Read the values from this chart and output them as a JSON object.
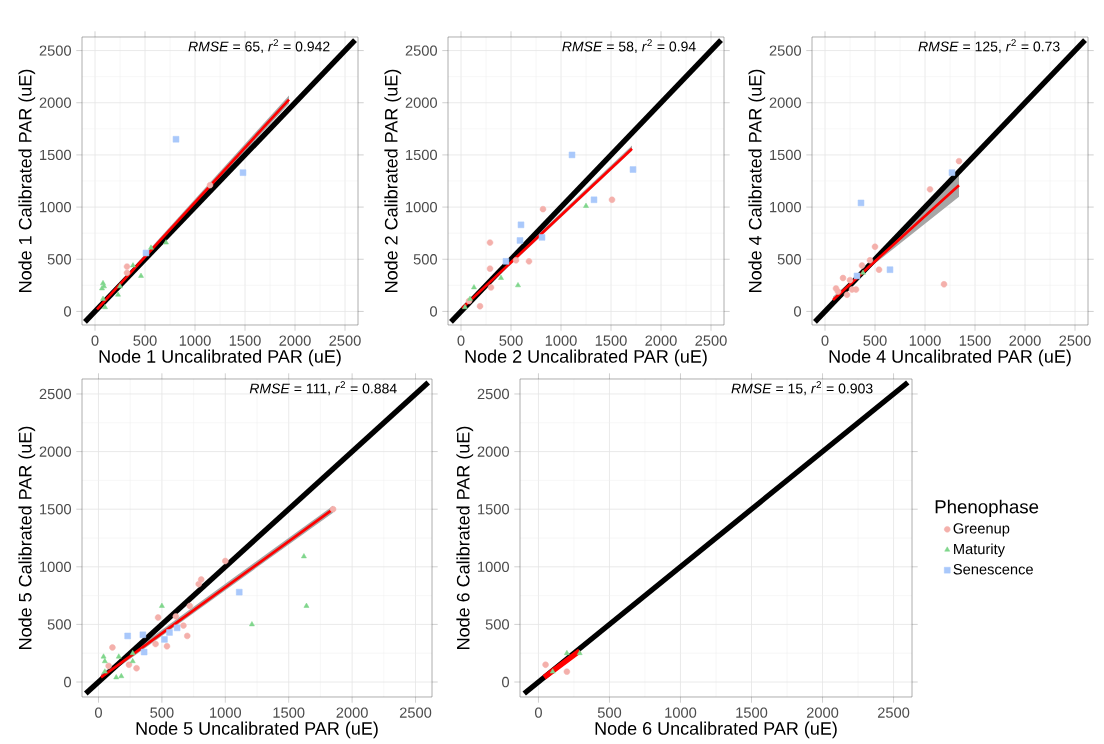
{
  "chart_data": [
    {
      "type": "scatter",
      "xlabel": "Node 1 Uncalibrated PAR (uE)",
      "ylabel": "Node 1 Calibrated PAR (uE)",
      "annotations": [
        "*RMSE* = 65, *r*$^{2}$ = 0.942"
      ],
      "xlim": [
        -130,
        2630
      ],
      "ylim": [
        -130,
        2630
      ],
      "xticks": [
        0,
        500,
        1000,
        1500,
        2000,
        2500
      ],
      "yticks": [
        0,
        500,
        1000,
        1500,
        2000,
        2500
      ],
      "grid": true,
      "legend": false,
      "series": [
        {
          "type": "scatter",
          "marker": "circle",
          "color": "#f4b0ab",
          "x": [
            320,
            320,
            1150
          ],
          "values": [
            430,
            370,
            1210
          ]
        },
        {
          "type": "scatter",
          "marker": "triangle",
          "color": "#7fd68b",
          "x": [
            80,
            90,
            70,
            80,
            100,
            230,
            460,
            380,
            560,
            710,
            250
          ],
          "values": [
            270,
            240,
            220,
            120,
            40,
            160,
            340,
            440,
            610,
            660,
            240
          ]
        },
        {
          "type": "scatter",
          "marker": "square",
          "color": "#a9c8fb",
          "x": [
            810,
            1480,
            510
          ],
          "values": [
            1650,
            1330,
            560
          ]
        },
        {
          "type": "line",
          "color": "#000000",
          "x": [
            -100,
            2600
          ],
          "values": [
            -100,
            2600
          ]
        },
        {
          "type": "line",
          "color": "#ff0000",
          "x": [
            20,
            1940
          ],
          "values": [
            20,
            2030
          ],
          "lower": [
            10,
            1990
          ],
          "upper": [
            40,
            2070
          ]
        }
      ]
    },
    {
      "type": "scatter",
      "xlabel": "Node 2 Uncalibrated PAR (uE)",
      "ylabel": "Node 2 Calibrated PAR (uE)",
      "annotations": [
        "*RMSE* = 58, *r*$^{2}$ = 0.94"
      ],
      "xlim": [
        -130,
        2630
      ],
      "ylim": [
        -130,
        2630
      ],
      "xticks": [
        0,
        500,
        1000,
        1500,
        2000,
        2500
      ],
      "yticks": [
        0,
        500,
        1000,
        1500,
        2000,
        2500
      ],
      "grid": true,
      "legend": false,
      "series": [
        {
          "type": "scatter",
          "marker": "circle",
          "color": "#f4b0ab",
          "x": [
            820,
            1510,
            290,
            550,
            680,
            290,
            300,
            190,
            80
          ],
          "values": [
            980,
            1070,
            660,
            490,
            480,
            410,
            230,
            50,
            100
          ]
        },
        {
          "type": "scatter",
          "marker": "triangle",
          "color": "#7fd68b",
          "x": [
            1250,
            400,
            570,
            130,
            90,
            40
          ],
          "values": [
            1010,
            320,
            250,
            230,
            120,
            40
          ]
        },
        {
          "type": "scatter",
          "marker": "square",
          "color": "#a9c8fb",
          "x": [
            1110,
            1720,
            1330,
            600,
            590,
            810,
            450
          ],
          "values": [
            1500,
            1360,
            1070,
            830,
            680,
            710,
            480
          ]
        },
        {
          "type": "line",
          "color": "#000000",
          "x": [
            -100,
            2600
          ],
          "values": [
            -100,
            2600
          ]
        },
        {
          "type": "line",
          "color": "#ff0000",
          "x": [
            10,
            1710
          ],
          "values": [
            30,
            1560
          ],
          "lower": [
            10,
            1540
          ],
          "upper": [
            50,
            1590
          ]
        }
      ]
    },
    {
      "type": "scatter",
      "xlabel": "Node 4 Uncalibrated PAR (uE)",
      "ylabel": "Node 4 Calibrated PAR (uE)",
      "annotations": [
        "*RMSE* = 125, *r*$^{2}$ = 0.73"
      ],
      "xlim": [
        -130,
        2630
      ],
      "ylim": [
        -130,
        2630
      ],
      "xticks": [
        0,
        500,
        1000,
        1500,
        2000,
        2500
      ],
      "yticks": [
        0,
        500,
        1000,
        1500,
        2000,
        2500
      ],
      "grid": true,
      "legend": false,
      "series": [
        {
          "type": "scatter",
          "marker": "circle",
          "color": "#f4b0ab",
          "x": [
            1340,
            1050,
            500,
            540,
            1190,
            370,
            450,
            180,
            110,
            270,
            310,
            220,
            130,
            250
          ],
          "values": [
            1440,
            1170,
            620,
            400,
            260,
            440,
            490,
            320,
            220,
            210,
            210,
            160,
            190,
            300
          ]
        },
        {
          "type": "scatter",
          "marker": "triangle",
          "color": "#7fd68b",
          "x": [
            380
          ],
          "values": [
            370
          ]
        },
        {
          "type": "scatter",
          "marker": "square",
          "color": "#a9c8fb",
          "x": [
            360,
            650,
            1270,
            320
          ],
          "values": [
            1040,
            400,
            1330,
            340
          ]
        },
        {
          "type": "line",
          "color": "#000000",
          "x": [
            -100,
            2600
          ],
          "values": [
            -100,
            2600
          ]
        },
        {
          "type": "line",
          "color": "#ff0000",
          "x": [
            80,
            500,
            1340
          ],
          "values": [
            110,
            480,
            1210
          ],
          "lower": [
            80,
            460,
            1100
          ],
          "upper": [
            140,
            500,
            1320
          ]
        }
      ]
    },
    {
      "type": "scatter",
      "xlabel": "Node 5 Uncalibrated PAR (uE)",
      "ylabel": "Node 5 Calibrated PAR (uE)",
      "annotations": [
        "*RMSE* = 111, *r*$^{2}$ = 0.884"
      ],
      "xlim": [
        -130,
        2630
      ],
      "ylim": [
        -130,
        2630
      ],
      "xticks": [
        0,
        500,
        1000,
        1500,
        2000,
        2500
      ],
      "yticks": [
        0,
        500,
        1000,
        1500,
        2000,
        2500
      ],
      "grid": true,
      "legend": false,
      "series": [
        {
          "type": "scatter",
          "marker": "circle",
          "color": "#f4b0ab",
          "x": [
            1850,
            1000,
            810,
            790,
            720,
            670,
            700,
            470,
            610,
            540,
            450,
            110,
            300,
            240,
            80
          ],
          "values": [
            1500,
            1050,
            890,
            850,
            660,
            490,
            400,
            560,
            570,
            310,
            330,
            300,
            120,
            150,
            140
          ]
        },
        {
          "type": "scatter",
          "marker": "triangle",
          "color": "#7fd68b",
          "x": [
            1620,
            1640,
            1210,
            500,
            40,
            50,
            160,
            270,
            140,
            180,
            50,
            270
          ],
          "values": [
            1090,
            660,
            500,
            660,
            220,
            180,
            220,
            180,
            40,
            50,
            90,
            250
          ]
        },
        {
          "type": "scatter",
          "marker": "square",
          "color": "#a9c8fb",
          "x": [
            1110,
            230,
            350,
            620,
            560,
            360,
            520
          ],
          "values": [
            780,
            400,
            410,
            470,
            430,
            260,
            370
          ]
        },
        {
          "type": "line",
          "color": "#000000",
          "x": [
            -100,
            2600
          ],
          "values": [
            -100,
            2600
          ]
        },
        {
          "type": "line",
          "color": "#ff0000",
          "x": [
            20,
            1850
          ],
          "values": [
            40,
            1500
          ],
          "lower": [
            20,
            1470
          ],
          "upper": [
            70,
            1530
          ]
        }
      ]
    },
    {
      "type": "scatter",
      "xlabel": "Node 6 Uncalibrated PAR (uE)",
      "ylabel": "Node 6 Calibrated PAR (uE)",
      "annotations": [
        "*RMSE* = 15, *r*$^{2}$ = 0.903"
      ],
      "xlim": [
        -130,
        2630
      ],
      "ylim": [
        -130,
        2630
      ],
      "xticks": [
        0,
        500,
        1000,
        1500,
        2000,
        2500
      ],
      "yticks": [
        0,
        500,
        1000,
        1500,
        2000,
        2500
      ],
      "grid": true,
      "legend": "right",
      "legend_title": "Phenophase",
      "series": [
        {
          "type": "scatter",
          "name": "Greenup",
          "marker": "circle",
          "color": "#f4b0ab",
          "x": [
            50,
            200
          ],
          "values": [
            150,
            90
          ]
        },
        {
          "type": "scatter",
          "name": "Maturity",
          "marker": "triangle",
          "color": "#7fd68b",
          "x": [
            200,
            290,
            100
          ],
          "values": [
            250,
            250,
            90
          ]
        },
        {
          "type": "scatter",
          "name": "Senescence",
          "marker": "square",
          "color": "#a9c8fb"
        },
        {
          "type": "line",
          "color": "#000000",
          "x": [
            -100,
            2600
          ],
          "values": [
            -100,
            2600
          ]
        },
        {
          "type": "line",
          "color": "#ff0000",
          "x": [
            40,
            290
          ],
          "values": [
            40,
            270
          ]
        }
      ]
    }
  ]
}
